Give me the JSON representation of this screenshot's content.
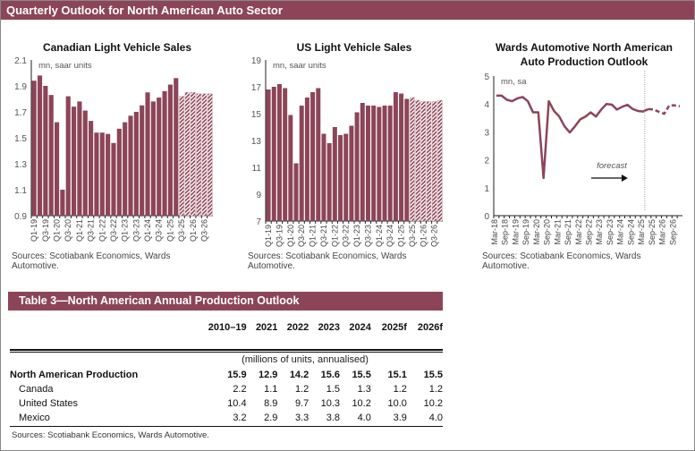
{
  "header": {
    "title": "Quarterly Outlook for North American Auto Sector"
  },
  "colors": {
    "brand": "#8c4558",
    "forecast_hatch": "#8c4558"
  },
  "chart_data": [
    {
      "type": "bar",
      "title": "Canadian Light Vehicle Sales",
      "unit_label": "mn, saar units",
      "ylim": [
        0.9,
        2.1
      ],
      "yticks": [
        "0.9",
        "1.1",
        "1.3",
        "1.5",
        "1.7",
        "1.9",
        "2.1"
      ],
      "categories": [
        "Q1-19",
        "Q2-19",
        "Q3-19",
        "Q4-19",
        "Q1-20",
        "Q2-20",
        "Q3-20",
        "Q4-20",
        "Q1-21",
        "Q2-21",
        "Q3-21",
        "Q4-21",
        "Q1-22",
        "Q2-22",
        "Q3-22",
        "Q4-22",
        "Q1-23",
        "Q2-23",
        "Q3-23",
        "Q4-23",
        "Q1-24",
        "Q2-24",
        "Q3-24",
        "Q4-24",
        "Q1-25",
        "Q2-25",
        "Q3-25",
        "Q4-25",
        "Q1-26",
        "Q2-26",
        "Q3-26",
        "Q4-26"
      ],
      "xtick_labels": [
        "Q1-19",
        "Q3-19",
        "Q1-20",
        "Q3-20",
        "Q1-21",
        "Q3-21",
        "Q1-22",
        "Q3-22",
        "Q1-23",
        "Q3-23",
        "Q1-24",
        "Q3-24",
        "Q1-25",
        "Q3-25",
        "Q1-26",
        "Q3-26"
      ],
      "values": [
        1.94,
        1.98,
        1.9,
        1.83,
        1.62,
        1.1,
        1.82,
        1.74,
        1.78,
        1.71,
        1.63,
        1.54,
        1.54,
        1.53,
        1.46,
        1.57,
        1.62,
        1.67,
        1.7,
        1.75,
        1.85,
        1.78,
        1.81,
        1.86,
        1.91,
        1.96,
        1.82,
        1.85,
        1.85,
        1.84,
        1.84,
        1.84
      ],
      "forecast_from": "Q3-25",
      "source": [
        "Sources: Scotiabank Economics, Wards",
        "Automotive."
      ]
    },
    {
      "type": "bar",
      "title": "US Light Vehicle Sales",
      "unit_label": "mn, saar units",
      "ylim": [
        7,
        19
      ],
      "yticks": [
        "7",
        "9",
        "11",
        "13",
        "15",
        "17",
        "19"
      ],
      "categories": [
        "Q1-19",
        "Q2-19",
        "Q3-19",
        "Q4-19",
        "Q1-20",
        "Q2-20",
        "Q3-20",
        "Q4-20",
        "Q1-21",
        "Q2-21",
        "Q3-21",
        "Q4-21",
        "Q1-22",
        "Q2-22",
        "Q3-22",
        "Q4-22",
        "Q1-23",
        "Q2-23",
        "Q3-23",
        "Q4-23",
        "Q1-24",
        "Q2-24",
        "Q3-24",
        "Q4-24",
        "Q1-25",
        "Q2-25",
        "Q3-25",
        "Q4-25",
        "Q1-26",
        "Q2-26",
        "Q3-26",
        "Q4-26"
      ],
      "xtick_labels": [
        "Q1-19",
        "Q3-19",
        "Q1-20",
        "Q3-20",
        "Q1-21",
        "Q3-21",
        "Q1-22",
        "Q3-22",
        "Q1-23",
        "Q3-23",
        "Q1-24",
        "Q3-24",
        "Q1-25",
        "Q3-25",
        "Q1-26",
        "Q3-26"
      ],
      "values": [
        16.8,
        17.0,
        17.2,
        16.9,
        14.9,
        11.3,
        15.6,
        16.2,
        16.6,
        16.9,
        13.5,
        12.8,
        14.0,
        13.4,
        13.5,
        14.1,
        15.1,
        15.8,
        15.6,
        15.6,
        15.5,
        15.6,
        15.6,
        16.6,
        16.5,
        16.1,
        16.2,
        16.0,
        15.9,
        15.9,
        15.9,
        16.0
      ],
      "forecast_from": "Q3-25",
      "source": [
        "Sources: Scotiabank Economics, Wards",
        "Automotive."
      ]
    },
    {
      "type": "line",
      "title": [
        "Wards Automotive North American",
        "Auto Production Outlook"
      ],
      "unit_label": "mn, sa",
      "ylim": [
        0,
        5
      ],
      "yticks": [
        "0",
        "1",
        "2",
        "3",
        "4",
        "5"
      ],
      "x": [
        "Mar-18",
        "Jun-18",
        "Sep-18",
        "Dec-18",
        "Mar-19",
        "Jun-19",
        "Sep-19",
        "Dec-19",
        "Mar-20",
        "Jun-20",
        "Sep-20",
        "Dec-20",
        "Mar-21",
        "Jun-21",
        "Sep-21",
        "Dec-21",
        "Mar-22",
        "Jun-22",
        "Sep-22",
        "Dec-22",
        "Mar-23",
        "Jun-23",
        "Sep-23",
        "Dec-23",
        "Mar-24",
        "Jun-24",
        "Sep-24",
        "Dec-24",
        "Mar-25",
        "Jun-25",
        "Sep-25",
        "Dec-25",
        "Mar-26",
        "Jun-26",
        "Sep-26",
        "Dec-26"
      ],
      "xtick_labels": [
        "Mar-18",
        "Sep-18",
        "Mar-19",
        "Sep-19",
        "Mar-20",
        "Sep-20",
        "Mar-21",
        "Sep-21",
        "Mar-22",
        "Sep-22",
        "Mar-23",
        "Sep-23",
        "Mar-24",
        "Sep-24",
        "Mar-25",
        "Sep-25",
        "Mar-26",
        "Sep-26"
      ],
      "values": [
        4.3,
        4.3,
        4.15,
        4.1,
        4.2,
        4.25,
        4.1,
        3.7,
        3.7,
        1.35,
        4.1,
        3.75,
        3.55,
        3.2,
        2.98,
        3.2,
        3.45,
        3.55,
        3.7,
        3.55,
        3.8,
        4.0,
        3.98,
        3.8,
        3.9,
        3.97,
        3.82,
        3.75,
        3.73,
        3.82,
        3.8,
        3.72,
        3.65,
        3.95,
        3.95,
        3.92
      ],
      "forecast_from": "Jun-25",
      "annotation": "forecast",
      "source": [
        "Sources: Scotiabank Economics, Wards",
        "Automotive."
      ]
    }
  ],
  "table": {
    "title": "Table 3—North American Annual Production Outlook",
    "columns": [
      "",
      "2010–19",
      "2021",
      "2022",
      "2023",
      "2024",
      "2025f",
      "2026f"
    ],
    "units": "(millions of units, annualised)",
    "rows": [
      {
        "label": "North American Production",
        "values": [
          "15.9",
          "12.9",
          "14.2",
          "15.6",
          "15.5",
          "15.1",
          "15.5"
        ]
      },
      {
        "label": "Canada",
        "values": [
          "2.2",
          "1.1",
          "1.2",
          "1.5",
          "1.3",
          "1.2",
          "1.2"
        ]
      },
      {
        "label": "United States",
        "values": [
          "10.4",
          "8.9",
          "9.7",
          "10.3",
          "10.2",
          "10.0",
          "10.2"
        ]
      },
      {
        "label": "Mexico",
        "values": [
          "3.2",
          "2.9",
          "3.3",
          "3.8",
          "4.0",
          "3.9",
          "4.0"
        ]
      }
    ],
    "source": "Sources: Scotiabank Economics, Wards Automotive."
  }
}
